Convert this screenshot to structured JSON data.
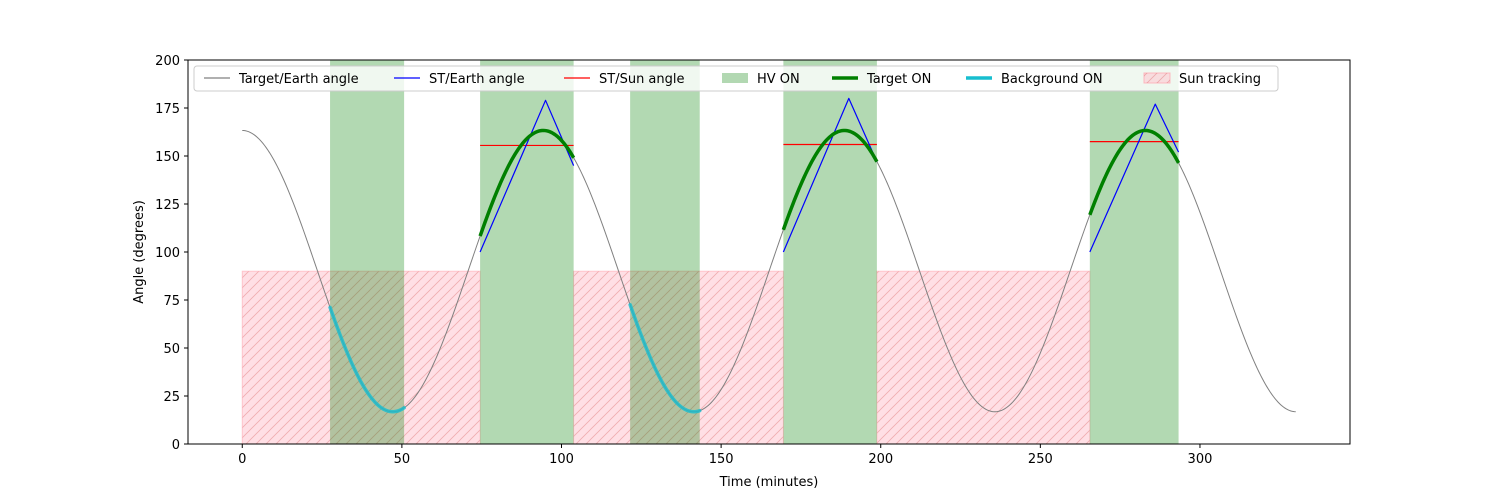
{
  "chart_data": {
    "type": "line",
    "title": "",
    "xlabel": "Time (minutes)",
    "ylabel": "Angle (degrees)",
    "xlim": [
      -17,
      347
    ],
    "ylim": [
      0,
      200
    ],
    "xticks": [
      0,
      50,
      100,
      150,
      200,
      250,
      300
    ],
    "yticks": [
      0,
      25,
      50,
      75,
      100,
      125,
      150,
      175,
      200
    ],
    "grid": false,
    "legend_position": "top",
    "legend": [
      {
        "label": "Target/Earth angle",
        "kind": "line",
        "color": "#808080"
      },
      {
        "label": "ST/Earth angle",
        "kind": "line",
        "color": "#0000ff"
      },
      {
        "label": "ST/Sun angle",
        "kind": "line",
        "color": "#ff0000"
      },
      {
        "label": "HV ON",
        "kind": "patch",
        "color": "#b2d8b2"
      },
      {
        "label": "Target ON",
        "kind": "thickline",
        "color": "#008000"
      },
      {
        "label": "Background ON",
        "kind": "thickline",
        "color": "#17becf"
      },
      {
        "label": "Sun tracking",
        "kind": "hatch",
        "color": "#ffc0cb"
      }
    ],
    "target_earth_angle": {
      "name": "Target/Earth angle",
      "color": "#808080",
      "orbit_period": 94.3,
      "max": 163.3,
      "min": 16.8,
      "t_start": 0,
      "t_end": 330
    },
    "hv_on": [
      [
        27.5,
        50.7
      ],
      [
        74.5,
        103.8
      ],
      [
        121.5,
        143.3
      ],
      [
        169.5,
        198.8
      ],
      [
        265.5,
        293.3
      ]
    ],
    "sun_tracking": {
      "y_max": 90,
      "intervals": [
        [
          0,
          74.5
        ],
        [
          103.8,
          169.5
        ],
        [
          198.8,
          265.5
        ]
      ]
    },
    "target_on": [
      {
        "t_start": 74.5,
        "t_end": 103.8
      },
      {
        "t_start": 169.5,
        "t_end": 198.8
      },
      {
        "t_start": 265.5,
        "t_end": 293.3
      }
    ],
    "background_on": [
      {
        "t_start": 27.5,
        "t_end": 50.7
      },
      {
        "t_start": 121.5,
        "t_end": 143.3
      }
    ],
    "st_earth_angle": [
      {
        "x": [
          74.5,
          95,
          103.8
        ],
        "y": [
          100,
          179,
          145
        ]
      },
      {
        "x": [
          169.5,
          190,
          198.8
        ],
        "y": [
          100,
          180,
          147
        ]
      },
      {
        "x": [
          265.5,
          286,
          293.3
        ],
        "y": [
          100,
          177,
          152
        ]
      }
    ],
    "st_sun_angle": [
      {
        "x": [
          74.5,
          103.8
        ],
        "y": [
          155.5,
          155.5
        ]
      },
      {
        "x": [
          169.5,
          198.8
        ],
        "y": [
          156,
          156
        ]
      },
      {
        "x": [
          265.5,
          293.3
        ],
        "y": [
          157.5,
          157.5
        ]
      }
    ]
  }
}
